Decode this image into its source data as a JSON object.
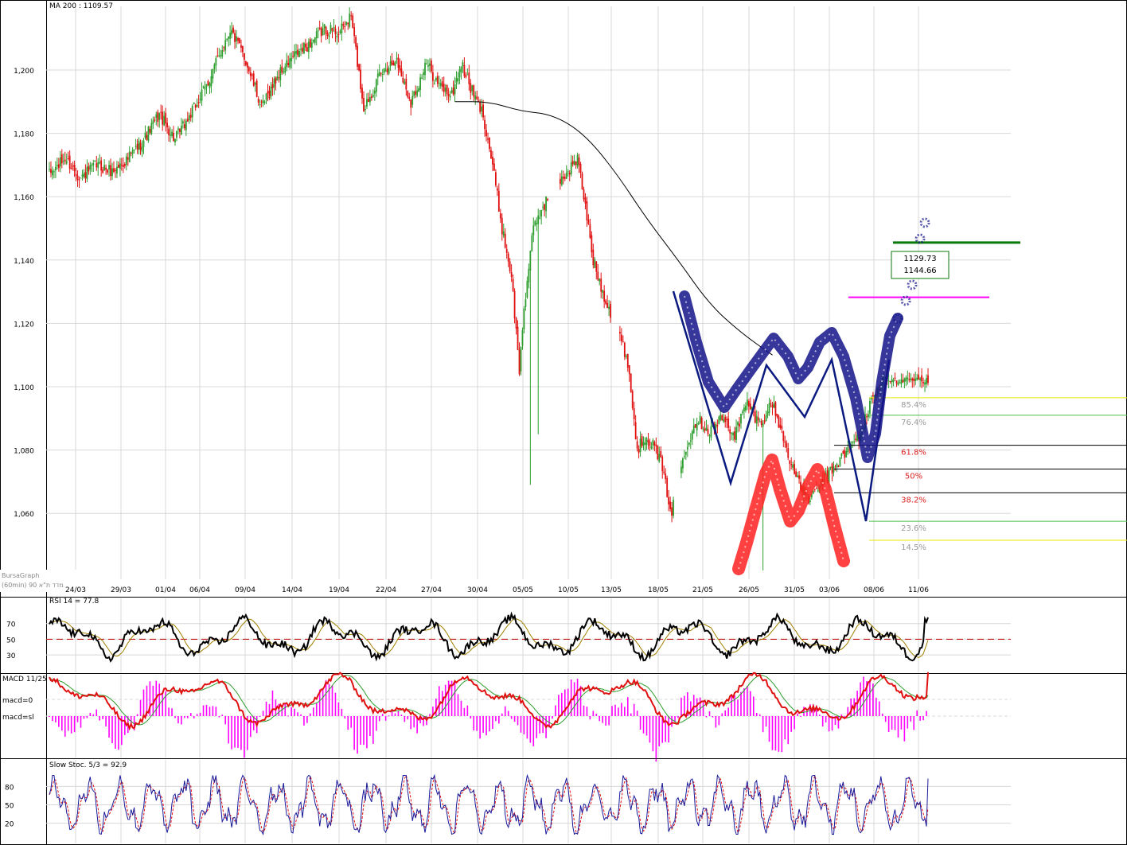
{
  "chart_data": [
    {
      "type": "candlestick",
      "title": "MA 200 : 1109.57",
      "watermark": "BursaGraph",
      "watermark_sub": "(60min) מדד ת\"א 90",
      "ylim": [
        1040,
        1220
      ],
      "yticks": [
        1060,
        1080,
        1100,
        1120,
        1140,
        1160,
        1180,
        1200
      ],
      "ytick_labels": [
        "1,060",
        "1,080",
        "1,100",
        "1,120",
        "1,140",
        "1,160",
        "1,180",
        "1,200"
      ],
      "x_tick_labels": [
        "24/03",
        "29/03",
        "01/04",
        "06/04",
        "09/04",
        "14/04",
        "19/04",
        "22/04",
        "27/04",
        "30/04",
        "05/05",
        "10/05",
        "13/05",
        "18/05",
        "21/05",
        "26/05",
        "31/05",
        "03/06",
        "08/06",
        "11/06"
      ],
      "x_anchor_values": [
        0,
        50,
        100,
        130,
        160,
        192,
        212,
        235,
        262,
        276,
        300,
        325,
        350,
        385,
        417,
        446,
        474,
        495,
        523,
        550
      ],
      "close_anchors": [
        [
          0,
          1167
        ],
        [
          10,
          1172
        ],
        [
          20,
          1166
        ],
        [
          30,
          1170
        ],
        [
          40,
          1168
        ],
        [
          50,
          1172
        ],
        [
          60,
          1178
        ],
        [
          70,
          1186
        ],
        [
          80,
          1178
        ],
        [
          90,
          1186
        ],
        [
          100,
          1195
        ],
        [
          115,
          1213
        ],
        [
          125,
          1203
        ],
        [
          135,
          1188
        ],
        [
          145,
          1198
        ],
        [
          155,
          1204
        ],
        [
          165,
          1208
        ],
        [
          175,
          1213
        ],
        [
          185,
          1212
        ],
        [
          192,
          1217
        ],
        [
          200,
          1188
        ],
        [
          210,
          1198
        ],
        [
          220,
          1204
        ],
        [
          230,
          1190
        ],
        [
          240,
          1202
        ],
        [
          248,
          1195
        ],
        [
          256,
          1192
        ],
        [
          262,
          1202
        ],
        [
          270,
          1192
        ],
        [
          276,
          1186
        ],
        [
          282,
          1170
        ],
        [
          288,
          1150
        ],
        [
          294,
          1135
        ],
        [
          299,
          1105
        ],
        [
          302,
          1125
        ],
        [
          308,
          1150
        ],
        [
          314,
          1157
        ],
        [
          318,
          1160
        ],
        [
          324,
          1165
        ],
        [
          330,
          1168
        ],
        [
          336,
          1172
        ],
        [
          340,
          1160
        ],
        [
          346,
          1140
        ],
        [
          352,
          1130
        ],
        [
          360,
          1120
        ],
        [
          368,
          1108
        ],
        [
          374,
          1080
        ],
        [
          380,
          1085
        ],
        [
          388,
          1078
        ],
        [
          396,
          1060
        ],
        [
          404,
          1080
        ],
        [
          412,
          1090
        ],
        [
          420,
          1086
        ],
        [
          428,
          1090
        ],
        [
          436,
          1085
        ],
        [
          444,
          1095
        ],
        [
          452,
          1088
        ],
        [
          460,
          1095
        ],
        [
          468,
          1082
        ],
        [
          476,
          1070
        ],
        [
          484,
          1064
        ],
        [
          492,
          1070
        ],
        [
          500,
          1075
        ],
        [
          508,
          1080
        ],
        [
          516,
          1085
        ],
        [
          524,
          1097
        ],
        [
          530,
          1102
        ]
      ],
      "ma200": {
        "name": "MA 200",
        "points": [
          [
            258,
            1190
          ],
          [
            280,
            1190
          ],
          [
            300,
            1187
          ],
          [
            320,
            1186
          ],
          [
            340,
            1180
          ],
          [
            360,
            1168
          ],
          [
            380,
            1153
          ],
          [
            400,
            1140
          ],
          [
            420,
            1126
          ],
          [
            440,
            1117
          ],
          [
            460,
            1110
          ]
        ]
      },
      "fib_levels": [
        {
          "label": "85.4%",
          "value": 1096.5,
          "line": "#e8e800",
          "text": "#9a9a9a"
        },
        {
          "label": "76.4%",
          "value": 1091,
          "line": "#4cc04c",
          "text": "#9a9a9a"
        },
        {
          "label": "61.8%",
          "value": 1081.5,
          "line": "#000000",
          "text": "#e02020"
        },
        {
          "label": "50%",
          "value": 1074,
          "line": "#000000",
          "text": "#e02020"
        },
        {
          "label": "38.2%",
          "value": 1066.5,
          "line": "#000000",
          "text": "#e02020"
        },
        {
          "label": "23.6%",
          "value": 1057.5,
          "line": "#4cc04c",
          "text": "#9a9a9a"
        },
        {
          "label": "14.5%",
          "value": 1051.5,
          "line": "#e8e800",
          "text": "#9a9a9a"
        }
      ],
      "target_lines": [
        {
          "value": 1145,
          "color": "#0a7a0a"
        },
        {
          "value": 1129,
          "color": "#ff00ff"
        }
      ],
      "annotation_box": {
        "line1": "1129.73",
        "line2": "1144.66"
      },
      "drawn_shapes": [
        {
          "kind": "blue-thin-W",
          "color": "#0a1a80"
        },
        {
          "kind": "navy-thick-W",
          "color": "#14148a"
        },
        {
          "kind": "red-thick-M",
          "color": "#ff2020"
        }
      ],
      "colors": {
        "up": "#2e9e2e",
        "down": "#e01010",
        "grid": "#d8d8d8",
        "ma": "#000000"
      }
    },
    {
      "type": "line",
      "title": "RSI 14 = 77.8",
      "ylim": [
        0,
        100
      ],
      "yticks": [
        30,
        50,
        70
      ],
      "ytick_labels": [
        "30",
        "50",
        "70"
      ],
      "reference_line": 50,
      "series": [
        {
          "name": "RSI 14",
          "color": "#000000",
          "last": 77.8
        },
        {
          "name": "",
          "color": "#a08000"
        }
      ]
    },
    {
      "type": "line+bar",
      "title": "MACD 11/25",
      "row_labels": [
        "macd=0",
        "macd=sl"
      ],
      "series": [
        {
          "name": "MACD",
          "color": "#e01010"
        },
        {
          "name": "",
          "color": "#2e9e2e"
        },
        {
          "name": "histogram",
          "color": "#ff00ff"
        }
      ]
    },
    {
      "type": "line",
      "title": "Slow Stoc. 5/3 = 92.9",
      "ylim": [
        0,
        100
      ],
      "yticks": [
        20,
        50,
        80
      ],
      "ytick_labels": [
        "20",
        "50",
        "80"
      ],
      "series": [
        {
          "name": "%K",
          "color": "#1a1a9a",
          "last": 92.9
        },
        {
          "name": "%D",
          "color": "#e01010"
        }
      ]
    }
  ]
}
